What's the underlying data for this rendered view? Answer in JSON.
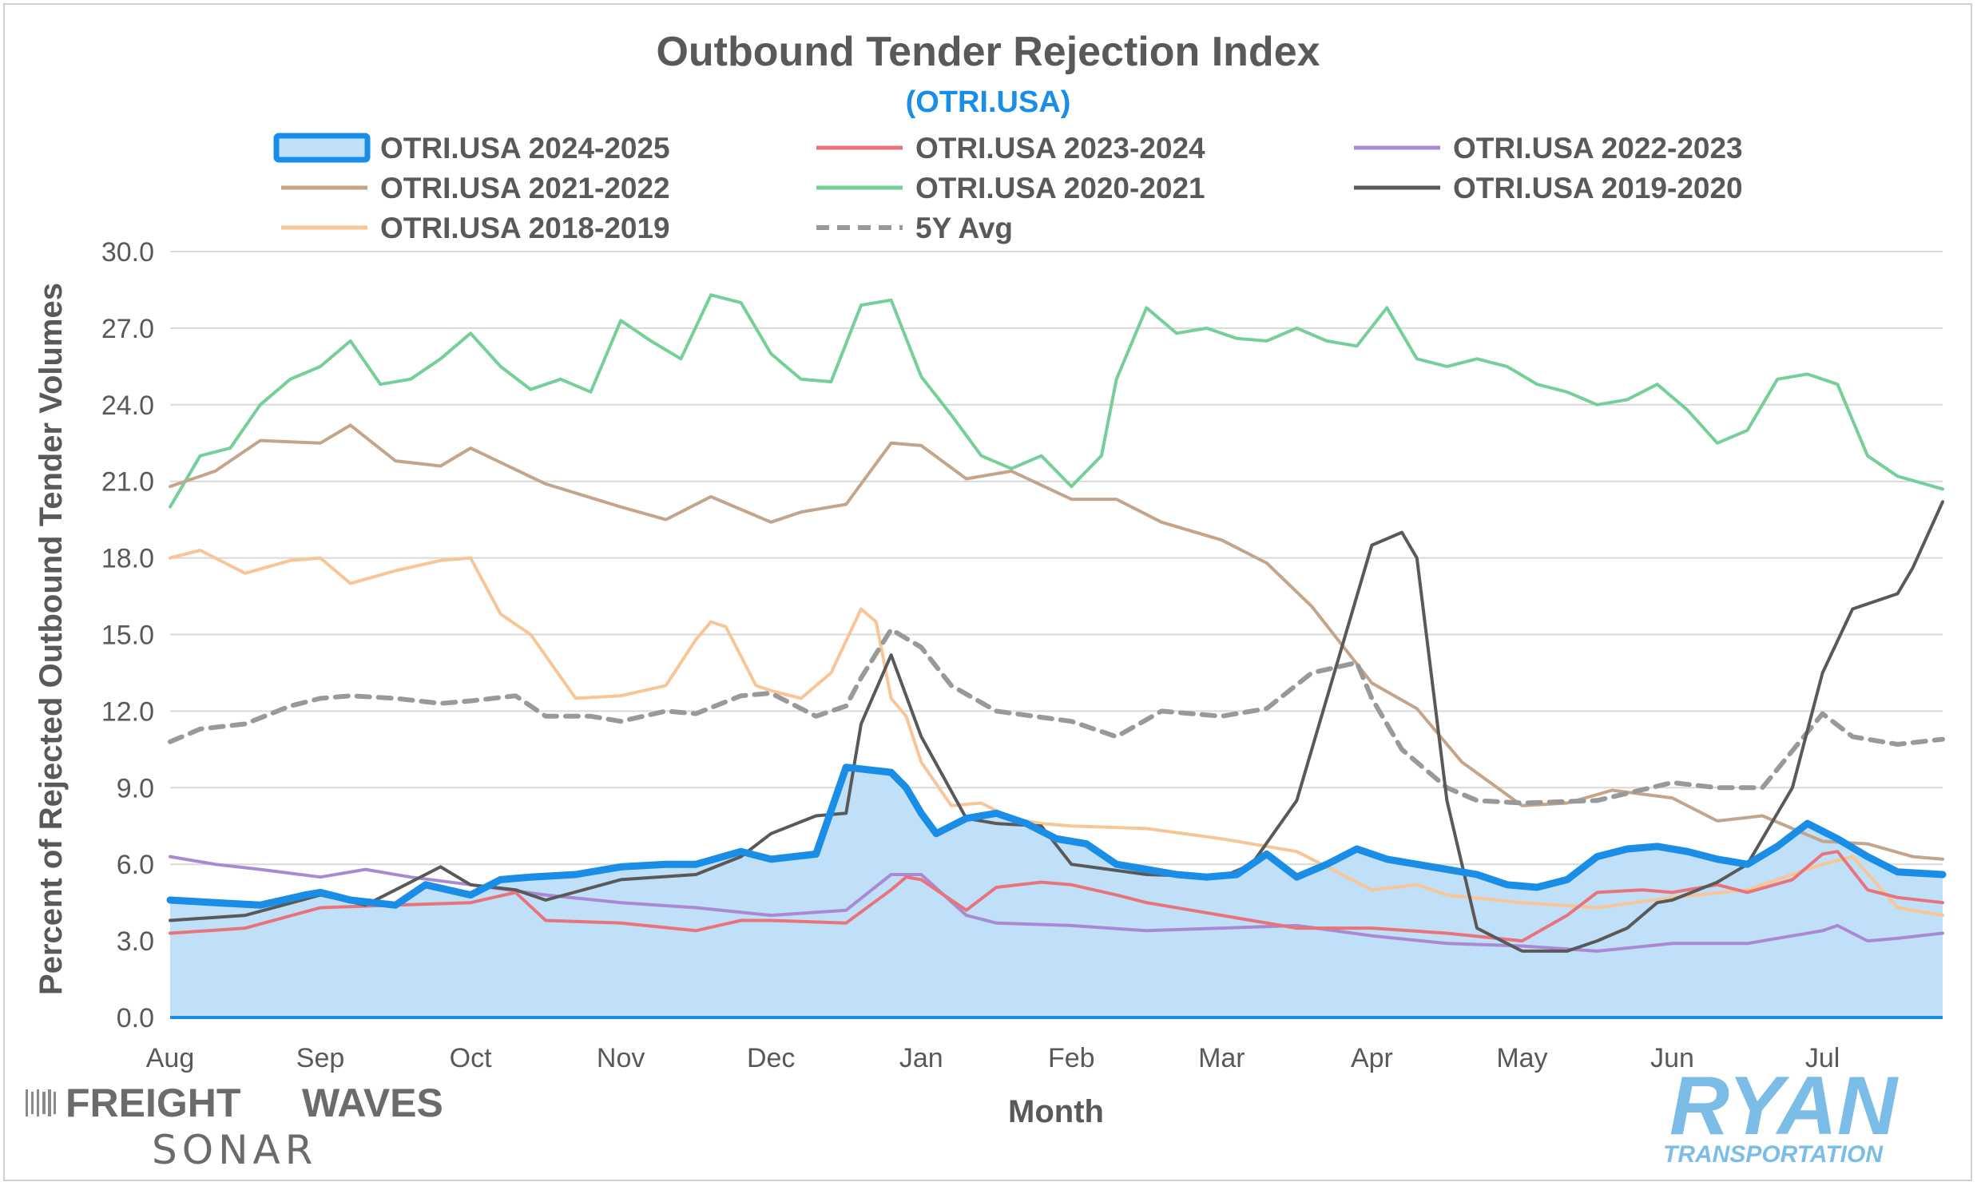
{
  "colors": {
    "s2425": "#1a8ee6",
    "s2425_fill": "#bfe0f8",
    "s2324": "#e8737a",
    "s2223": "#a98ad2",
    "s2122": "#c4a58a",
    "s2021": "#74cf98",
    "s1920": "#595959",
    "s1819": "#f8c696",
    "avg": "#999999",
    "subtitle": "#1a8ee6",
    "ryan": "#7bbde7"
  },
  "branding": {
    "freightwaves_a": "FREIGHT",
    "freightwaves_b": "WAVES",
    "sonar": "SONAR",
    "ryan": "RYAN",
    "transportation": "TRANSPORTATION"
  },
  "chart_data": {
    "type": "line",
    "title": "Outbound Tender Rejection Index",
    "subtitle": "(OTRI.USA)",
    "xlabel": "Month",
    "ylabel": "Percent of Rejected Outbound Tender Volumes",
    "ylim": [
      0,
      30
    ],
    "yticks": [
      "0.0",
      "3.0",
      "6.0",
      "9.0",
      "12.0",
      "15.0",
      "18.0",
      "21.0",
      "24.0",
      "27.0",
      "30.0"
    ],
    "months": [
      "Aug",
      "Sep",
      "Oct",
      "Nov",
      "Dec",
      "Jan",
      "Feb",
      "Mar",
      "Apr",
      "May",
      "Jun",
      "Jul"
    ],
    "x_unit": "month index (0 = Aug)",
    "x_range": [
      0,
      11.8
    ],
    "grid": true,
    "legend_position": "top",
    "series": [
      {
        "key": "s2425",
        "name": "OTRI.USA 2024-2025",
        "style": "area",
        "x": [
          0,
          0.3,
          0.6,
          0.9,
          1.0,
          1.2,
          1.5,
          1.7,
          2.0,
          2.2,
          2.4,
          2.7,
          3.0,
          3.3,
          3.5,
          3.8,
          4.0,
          4.3,
          4.5,
          4.8,
          4.9,
          5.0,
          5.1,
          5.3,
          5.5,
          5.7,
          5.9,
          6.1,
          6.3,
          6.5,
          6.7,
          6.9,
          7.1,
          7.3,
          7.5,
          7.7,
          7.9,
          8.1,
          8.3,
          8.5,
          8.7,
          8.9,
          9.1,
          9.3,
          9.5,
          9.7,
          9.9,
          10.1,
          10.3,
          10.5,
          10.7,
          10.9,
          11.1,
          11.3,
          11.5,
          11.8
        ],
        "values": [
          4.6,
          4.5,
          4.4,
          4.8,
          4.9,
          4.6,
          4.4,
          5.2,
          4.8,
          5.4,
          5.5,
          5.6,
          5.9,
          6.0,
          6.0,
          6.5,
          6.2,
          6.4,
          9.8,
          9.6,
          9.0,
          8.0,
          7.2,
          7.8,
          8.0,
          7.6,
          7.0,
          6.8,
          6.0,
          5.8,
          5.6,
          5.5,
          5.6,
          6.4,
          5.5,
          6.0,
          6.6,
          6.2,
          6.0,
          5.8,
          5.6,
          5.2,
          5.1,
          5.4,
          6.3,
          6.6,
          6.7,
          6.5,
          6.2,
          6.0,
          6.7,
          7.6,
          7.0,
          6.3,
          5.7,
          5.6
        ]
      },
      {
        "key": "s2324",
        "name": "OTRI.USA 2023-2024",
        "style": "line",
        "x": [
          0,
          0.5,
          1.0,
          1.5,
          2.0,
          2.3,
          2.5,
          3.0,
          3.5,
          3.8,
          4.0,
          4.5,
          4.8,
          4.9,
          5.0,
          5.3,
          5.5,
          5.8,
          6.0,
          6.3,
          6.5,
          7.0,
          7.5,
          8.0,
          8.5,
          9.0,
          9.3,
          9.5,
          9.8,
          10.0,
          10.3,
          10.5,
          10.8,
          11.0,
          11.1,
          11.3,
          11.5,
          11.8
        ],
        "values": [
          3.3,
          3.5,
          4.3,
          4.4,
          4.5,
          4.9,
          3.8,
          3.7,
          3.4,
          3.8,
          3.8,
          3.7,
          5.0,
          5.5,
          5.4,
          4.2,
          5.1,
          5.3,
          5.2,
          4.8,
          4.5,
          4.0,
          3.5,
          3.5,
          3.3,
          3.0,
          4.0,
          4.9,
          5.0,
          4.9,
          5.2,
          4.9,
          5.4,
          6.4,
          6.5,
          5.0,
          4.7,
          4.5
        ]
      },
      {
        "key": "s2223",
        "name": "OTRI.USA 2022-2023",
        "style": "line",
        "x": [
          0,
          0.3,
          0.6,
          1.0,
          1.3,
          1.6,
          2.0,
          2.5,
          3.0,
          3.5,
          4.0,
          4.5,
          4.8,
          5.0,
          5.3,
          5.5,
          6.0,
          6.5,
          7.0,
          7.5,
          8.0,
          8.5,
          9.0,
          9.5,
          10.0,
          10.5,
          11.0,
          11.1,
          11.3,
          11.5,
          11.8
        ],
        "values": [
          6.3,
          6.0,
          5.8,
          5.5,
          5.8,
          5.5,
          5.2,
          4.8,
          4.5,
          4.3,
          4.0,
          4.2,
          5.6,
          5.6,
          4.0,
          3.7,
          3.6,
          3.4,
          3.5,
          3.6,
          3.2,
          2.9,
          2.8,
          2.6,
          2.9,
          2.9,
          3.4,
          3.6,
          3.0,
          3.1,
          3.3
        ]
      },
      {
        "key": "s2122",
        "name": "OTRI.USA 2021-2022",
        "style": "line",
        "x": [
          0,
          0.3,
          0.6,
          1.0,
          1.2,
          1.5,
          1.8,
          2.0,
          2.5,
          3.0,
          3.3,
          3.6,
          4.0,
          4.2,
          4.5,
          4.8,
          5.0,
          5.3,
          5.6,
          6.0,
          6.3,
          6.6,
          7.0,
          7.3,
          7.6,
          8.0,
          8.3,
          8.6,
          9.0,
          9.3,
          9.6,
          10.0,
          10.3,
          10.6,
          11.0,
          11.3,
          11.6,
          11.8
        ],
        "values": [
          20.8,
          21.4,
          22.6,
          22.5,
          23.2,
          21.8,
          21.6,
          22.3,
          20.9,
          20.0,
          19.5,
          20.4,
          19.4,
          19.8,
          20.1,
          22.5,
          22.4,
          21.1,
          21.4,
          20.3,
          20.3,
          19.4,
          18.7,
          17.8,
          16.1,
          13.1,
          12.1,
          10.0,
          8.3,
          8.4,
          8.9,
          8.6,
          7.7,
          7.9,
          6.9,
          6.8,
          6.3,
          6.2
        ]
      },
      {
        "key": "s2021",
        "name": "OTRI.USA 2020-2021",
        "style": "line",
        "x": [
          0,
          0.2,
          0.4,
          0.6,
          0.8,
          1.0,
          1.2,
          1.4,
          1.6,
          1.8,
          2.0,
          2.2,
          2.4,
          2.6,
          2.8,
          3.0,
          3.2,
          3.4,
          3.6,
          3.8,
          4.0,
          4.2,
          4.4,
          4.6,
          4.8,
          5.0,
          5.2,
          5.4,
          5.6,
          5.8,
          6.0,
          6.2,
          6.3,
          6.5,
          6.7,
          6.9,
          7.1,
          7.3,
          7.5,
          7.7,
          7.9,
          8.1,
          8.3,
          8.5,
          8.7,
          8.9,
          9.1,
          9.3,
          9.5,
          9.7,
          9.9,
          10.1,
          10.3,
          10.5,
          10.7,
          10.9,
          11.1,
          11.3,
          11.5,
          11.8
        ],
        "values": [
          20.0,
          22.0,
          22.3,
          24.0,
          25.0,
          25.5,
          26.5,
          24.8,
          25.0,
          25.8,
          26.8,
          25.5,
          24.6,
          25.0,
          24.5,
          27.3,
          26.5,
          25.8,
          28.3,
          28.0,
          26.0,
          25.0,
          24.9,
          27.9,
          28.1,
          25.1,
          23.6,
          22.0,
          21.5,
          22.0,
          20.8,
          22.0,
          25.0,
          27.8,
          26.8,
          27.0,
          26.6,
          26.5,
          27.0,
          26.5,
          26.3,
          27.8,
          25.8,
          25.5,
          25.8,
          25.5,
          24.8,
          24.5,
          24.0,
          24.2,
          24.8,
          23.8,
          22.5,
          23.0,
          25.0,
          25.2,
          24.8,
          22.0,
          21.2,
          20.7
        ]
      },
      {
        "key": "s1920",
        "name": "OTRI.USA 2019-2020",
        "style": "line",
        "x": [
          0,
          0.5,
          1.0,
          1.3,
          1.5,
          1.8,
          2.0,
          2.3,
          2.5,
          3.0,
          3.5,
          3.8,
          4.0,
          4.3,
          4.5,
          4.6,
          4.8,
          5.0,
          5.3,
          5.5,
          5.8,
          6.0,
          6.5,
          7.0,
          7.2,
          7.5,
          7.7,
          7.9,
          8.0,
          8.2,
          8.3,
          8.5,
          8.7,
          8.9,
          9.0,
          9.3,
          9.5,
          9.7,
          9.9,
          10.0,
          10.3,
          10.5,
          10.8,
          11.0,
          11.2,
          11.5,
          11.6,
          11.8
        ],
        "values": [
          3.8,
          4.0,
          4.8,
          4.4,
          5.0,
          5.9,
          5.2,
          5.0,
          4.6,
          5.4,
          5.6,
          6.3,
          7.2,
          7.9,
          8.0,
          11.5,
          14.2,
          11.0,
          7.8,
          7.6,
          7.5,
          6.0,
          5.6,
          5.5,
          6.0,
          8.5,
          12.5,
          16.5,
          18.5,
          19.0,
          18.0,
          8.5,
          3.5,
          2.9,
          2.6,
          2.6,
          3.0,
          3.5,
          4.5,
          4.6,
          5.3,
          6.0,
          9.0,
          13.5,
          16.0,
          16.6,
          17.6,
          20.2
        ]
      },
      {
        "key": "s1819",
        "name": "OTRI.USA 2018-2019",
        "style": "line",
        "x": [
          0,
          0.2,
          0.5,
          0.8,
          1.0,
          1.2,
          1.5,
          1.8,
          2.0,
          2.2,
          2.4,
          2.7,
          3.0,
          3.3,
          3.5,
          3.6,
          3.7,
          3.9,
          4.0,
          4.2,
          4.4,
          4.6,
          4.7,
          4.8,
          4.9,
          5.0,
          5.2,
          5.4,
          5.6,
          5.8,
          6.0,
          6.5,
          7.0,
          7.5,
          8.0,
          8.3,
          8.5,
          9.0,
          9.5,
          10.0,
          10.5,
          11.0,
          11.2,
          11.5,
          11.8
        ],
        "values": [
          18.0,
          18.3,
          17.4,
          17.9,
          18.0,
          17.0,
          17.5,
          17.9,
          18.0,
          15.8,
          15.0,
          12.5,
          12.6,
          13.0,
          14.8,
          15.5,
          15.3,
          13.0,
          12.8,
          12.5,
          13.5,
          16.0,
          15.5,
          12.5,
          11.8,
          10.0,
          8.3,
          8.4,
          7.8,
          7.6,
          7.5,
          7.4,
          7.0,
          6.5,
          5.0,
          5.2,
          4.8,
          4.5,
          4.3,
          4.7,
          5.0,
          6.0,
          6.3,
          4.3,
          4.0
        ]
      },
      {
        "key": "avg",
        "name": "5Y Avg",
        "style": "dashed",
        "x": [
          0,
          0.2,
          0.5,
          0.8,
          1.0,
          1.2,
          1.5,
          1.8,
          2.0,
          2.3,
          2.5,
          2.8,
          3.0,
          3.3,
          3.5,
          3.8,
          4.0,
          4.3,
          4.5,
          4.6,
          4.8,
          5.0,
          5.2,
          5.5,
          6.0,
          6.3,
          6.6,
          7.0,
          7.3,
          7.6,
          7.9,
          8.0,
          8.2,
          8.5,
          8.7,
          9.0,
          9.5,
          10.0,
          10.3,
          10.6,
          11.0,
          11.2,
          11.5,
          11.8
        ],
        "values": [
          10.8,
          11.3,
          11.5,
          12.2,
          12.5,
          12.6,
          12.5,
          12.3,
          12.4,
          12.6,
          11.8,
          11.8,
          11.6,
          12.0,
          11.9,
          12.6,
          12.7,
          11.8,
          12.2,
          13.3,
          15.2,
          14.5,
          13.0,
          12.0,
          11.6,
          11.0,
          12.0,
          11.8,
          12.1,
          13.5,
          13.9,
          12.5,
          10.5,
          9.0,
          8.5,
          8.4,
          8.5,
          9.2,
          9.0,
          9.0,
          11.9,
          11.0,
          10.7,
          10.9
        ]
      }
    ]
  }
}
